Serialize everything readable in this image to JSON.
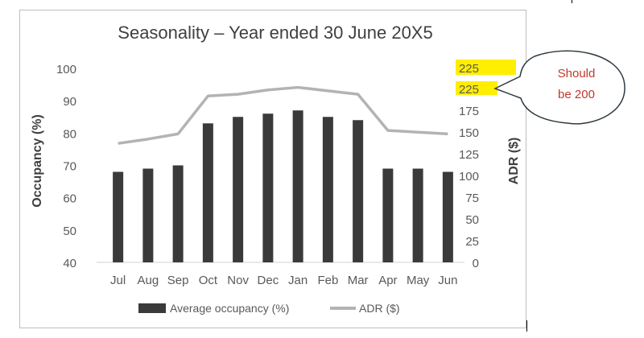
{
  "chart_data": {
    "type": "bar",
    "title": "Seasonality – Year ended 30 June 20X5",
    "categories": [
      "Jul",
      "Aug",
      "Sep",
      "Oct",
      "Nov",
      "Dec",
      "Jan",
      "Feb",
      "Mar",
      "Apr",
      "May",
      "Jun"
    ],
    "series": [
      {
        "name": "Average occupancy (%)",
        "type": "bar",
        "axis": "left",
        "color": "#3a3a3a",
        "values": [
          68,
          69,
          70,
          83,
          85,
          86,
          87,
          85,
          84,
          69,
          69,
          68
        ]
      },
      {
        "name": "ADR ($)",
        "type": "line",
        "axis": "right",
        "color": "#b3b3b3",
        "values": [
          138,
          143,
          149,
          193,
          195,
          200,
          203,
          199,
          195,
          153,
          151,
          149
        ]
      }
    ],
    "ylabel": "Occupancy (%)",
    "ylim": [
      40,
      100
    ],
    "yticks": [
      40,
      50,
      60,
      70,
      80,
      90,
      100
    ],
    "y2label": "ADR ($)",
    "y2lim": [
      0,
      225
    ],
    "y2ticks": [
      "0",
      "25",
      "50",
      "75",
      "100",
      "125",
      "150",
      "175",
      "225",
      "225"
    ],
    "legend": {
      "position": "bottom",
      "items": [
        "Average occupancy (%)",
        "ADR ($)"
      ]
    },
    "annotation": {
      "text_lines": [
        "Should",
        "be 200"
      ],
      "text_color": "#c0392b",
      "highlight_color": "#ffee00",
      "highlighted_ticks": [
        "225",
        "225"
      ]
    }
  }
}
